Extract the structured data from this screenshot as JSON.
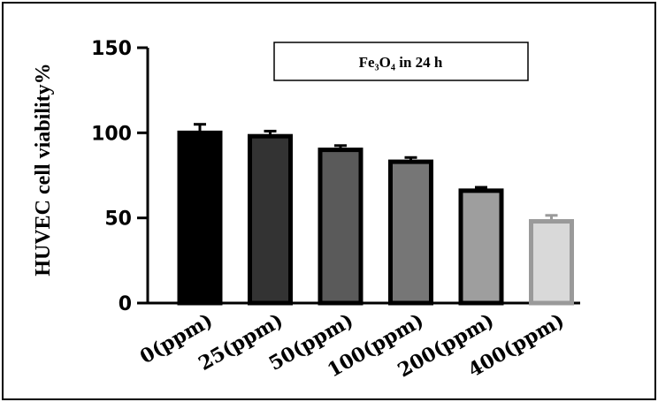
{
  "chart_data": {
    "type": "bar",
    "title": "Fe₃O₄  in 24 h",
    "ylabel": "HUVEC cell viability%",
    "xlabel": "",
    "categories": [
      "0(ppm)",
      "25(ppm)",
      "50(ppm)",
      "100(ppm)",
      "200(ppm)",
      "400(ppm)"
    ],
    "values": [
      100,
      98,
      90,
      83,
      66,
      48
    ],
    "errors": [
      5,
      3,
      2.5,
      2.5,
      2,
      3.5
    ],
    "ylim": [
      0,
      150
    ],
    "yticks": [
      "0",
      "50",
      "100",
      "150"
    ],
    "grid": false,
    "bar_fills": [
      "#000000",
      "#333333",
      "#5a5a5a",
      "#767676",
      "#9e9e9e",
      "#d9d9d9"
    ],
    "bar_edges": [
      "#000000",
      "#000000",
      "#000000",
      "#000000",
      "#000000",
      "#9a9a9a"
    ]
  }
}
